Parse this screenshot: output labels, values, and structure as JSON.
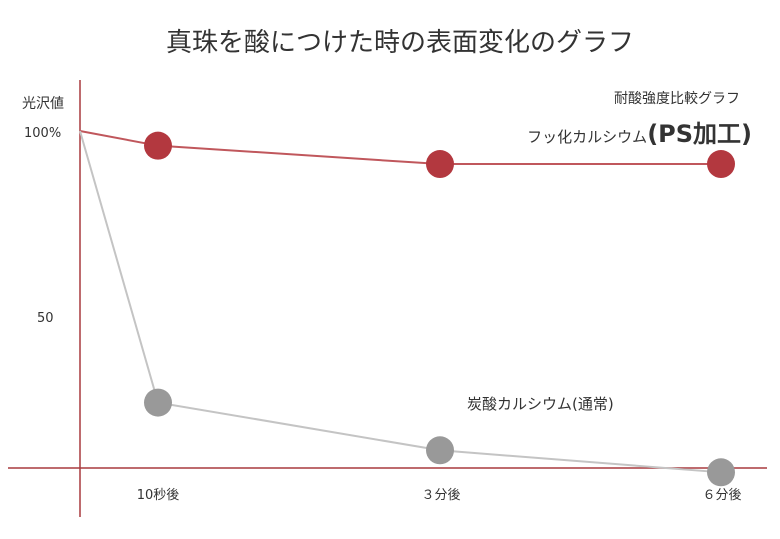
{
  "chart_data": {
    "type": "line",
    "title": "真珠を酸につけた時の表面変化のグラフ",
    "subtitle": "耐酸強度比較グラフ",
    "ylabel": "光沢値",
    "ylim": [
      0,
      100
    ],
    "yticks": [
      "100%",
      "50"
    ],
    "categories": [
      "10秒後",
      "３分後",
      "６分後"
    ],
    "series": [
      {
        "name": "フッ化カルシウム",
        "name_suffix": "(PS加工)",
        "start": 100,
        "values": [
          96,
          91,
          91
        ],
        "color": "#b3383f",
        "line_color": "#c0575c"
      },
      {
        "name": "炭酸カルシウム(通常)",
        "start": 100,
        "values": [
          26,
          13,
          7
        ],
        "color": "#999999",
        "line_color": "#c4c4c4"
      }
    ],
    "axis_color": "#a83a3f",
    "grid": false
  }
}
